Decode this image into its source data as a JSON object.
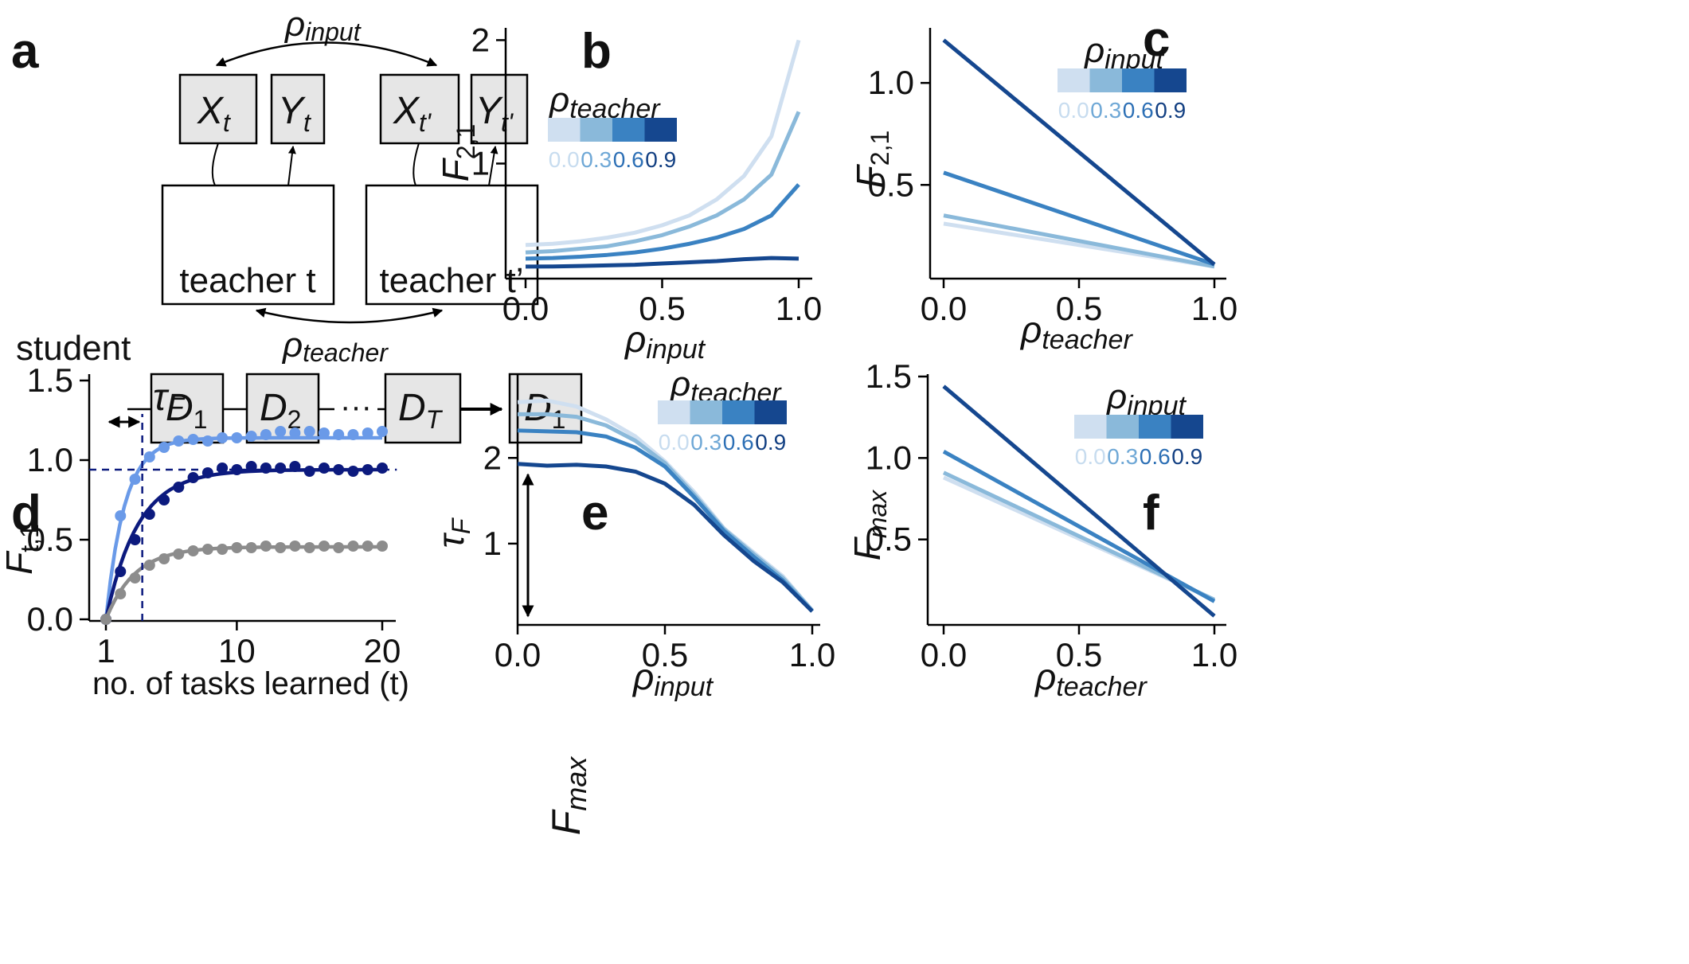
{
  "panel_letters": [
    "a",
    "b",
    "c",
    "d",
    "e",
    "f"
  ],
  "colors": {
    "shades": [
      "#cfdff0",
      "#8ab9da",
      "#3a82c2",
      "#15478f"
    ],
    "label_shades": [
      "#c7dcef",
      "#6fa8d6",
      "#2c6fb5",
      "#123f82"
    ],
    "d_light": "#6a9ae8",
    "d_dark": "#0c1a7e",
    "d_gray": "#8c8c8c",
    "box_fill": "#e6e6e6"
  },
  "schematic": {
    "rho": "ρ",
    "sub_input": "input",
    "sub_teacher": "teacher",
    "x_t": {
      "main": "X",
      "sub": "t"
    },
    "y_t": {
      "main": "Y",
      "sub": "t"
    },
    "x_tp": {
      "main": "X",
      "sub": "t'"
    },
    "y_tp": {
      "main": "Y",
      "sub": "t'"
    },
    "teacher_t_label": "teacher t",
    "teacher_tp_label": "teacher t’",
    "student_label": "student",
    "d1": {
      "main": "D",
      "sub": "1"
    },
    "d2": {
      "main": "D",
      "sub": "2"
    },
    "dots": "···",
    "dT": {
      "main": "D",
      "sub": "T"
    },
    "d1_end": {
      "main": "D",
      "sub": "1"
    }
  },
  "chart_data": [
    {
      "panel": "b",
      "type": "line",
      "xlabel": {
        "main": "ρ",
        "sub": "input"
      },
      "ylabel": {
        "main": "F",
        "sub": "2,1"
      },
      "xlim": [
        0,
        1
      ],
      "ylim": [
        0.1,
        2.08
      ],
      "xticks": [
        "0.0",
        "0.5",
        "1.0"
      ],
      "yticks": [
        "1",
        "2"
      ],
      "legend": {
        "title_main": "ρ",
        "title_sub": "teacher",
        "labels": [
          "0.0",
          "0.3",
          "0.6",
          "0.9"
        ]
      },
      "x": [
        0,
        0.1,
        0.2,
        0.3,
        0.4,
        0.5,
        0.6,
        0.7,
        0.8,
        0.9,
        1.0
      ],
      "series": [
        {
          "name": "0.0",
          "values": [
            0.34,
            0.35,
            0.37,
            0.4,
            0.44,
            0.5,
            0.58,
            0.71,
            0.9,
            1.22,
            2.0
          ]
        },
        {
          "name": "0.3",
          "values": [
            0.28,
            0.29,
            0.31,
            0.33,
            0.37,
            0.42,
            0.49,
            0.58,
            0.71,
            0.91,
            1.42
          ]
        },
        {
          "name": "0.6",
          "values": [
            0.23,
            0.235,
            0.245,
            0.26,
            0.28,
            0.31,
            0.35,
            0.4,
            0.47,
            0.58,
            0.83
          ]
        },
        {
          "name": "0.9",
          "values": [
            0.165,
            0.166,
            0.17,
            0.175,
            0.18,
            0.19,
            0.2,
            0.21,
            0.225,
            0.235,
            0.23
          ]
        }
      ]
    },
    {
      "panel": "c",
      "type": "line",
      "xlabel": {
        "main": "ρ",
        "sub": "teacher"
      },
      "ylabel": {
        "main": "F",
        "sub": "2,1"
      },
      "xlim": [
        0,
        1
      ],
      "ylim": [
        0.06,
        1.27
      ],
      "xticks": [
        "0.0",
        "0.5",
        "1.0"
      ],
      "yticks": [
        "0.5",
        "1.0"
      ],
      "legend": {
        "title_main": "ρ",
        "title_sub": "input",
        "labels": [
          "0.0",
          "0.3",
          "0.6",
          "0.9"
        ]
      },
      "x": [
        0,
        1.0
      ],
      "series": [
        {
          "name": "0.0",
          "values": [
            0.31,
            0.1
          ]
        },
        {
          "name": "0.3",
          "values": [
            0.35,
            0.1
          ]
        },
        {
          "name": "0.6",
          "values": [
            0.56,
            0.11
          ]
        },
        {
          "name": "0.9",
          "values": [
            1.21,
            0.11
          ]
        }
      ]
    },
    {
      "panel": "d",
      "type": "scatter",
      "xlabel": "no. of tasks learned (t)",
      "ylabel": {
        "main": "F",
        "sub": "t,1"
      },
      "xlim": [
        1,
        20
      ],
      "ylim": [
        0,
        1.5
      ],
      "xticks": [
        "1",
        "10",
        "20"
      ],
      "yticks": [
        "0.0",
        "0.5",
        "1.0",
        "1.5"
      ],
      "annotations": {
        "tau_main": "τ",
        "tau_sub": "F",
        "fmax_main": "F",
        "fmax_sub": "max",
        "tau_x": 3.5,
        "fmax_y": 0.94
      },
      "x": [
        1,
        2,
        3,
        4,
        5,
        6,
        7,
        8,
        9,
        10,
        11,
        12,
        13,
        14,
        15,
        16,
        17,
        18,
        19,
        20
      ],
      "series": [
        {
          "name": "light",
          "values": [
            0,
            0.65,
            0.88,
            1.02,
            1.08,
            1.12,
            1.13,
            1.12,
            1.14,
            1.14,
            1.15,
            1.16,
            1.18,
            1.17,
            1.18,
            1.17,
            1.16,
            1.16,
            1.17,
            1.18
          ]
        },
        {
          "name": "dark",
          "values": [
            0,
            0.3,
            0.5,
            0.66,
            0.75,
            0.83,
            0.89,
            0.92,
            0.95,
            0.94,
            0.96,
            0.95,
            0.95,
            0.96,
            0.93,
            0.95,
            0.94,
            0.93,
            0.94,
            0.95
          ]
        },
        {
          "name": "gray",
          "values": [
            0,
            0.16,
            0.26,
            0.34,
            0.38,
            0.41,
            0.43,
            0.44,
            0.44,
            0.45,
            0.45,
            0.46,
            0.45,
            0.46,
            0.45,
            0.46,
            0.45,
            0.46,
            0.46,
            0.46
          ]
        }
      ],
      "fits": [
        {
          "name": "light",
          "amp": 1.14,
          "tau": 1.3
        },
        {
          "name": "dark",
          "amp": 0.94,
          "tau": 2.2
        },
        {
          "name": "gray",
          "amp": 0.455,
          "tau": 2.0
        }
      ]
    },
    {
      "panel": "e",
      "type": "line",
      "xlabel": {
        "main": "ρ",
        "sub": "input"
      },
      "ylabel": {
        "main": "τ",
        "sub": "F"
      },
      "xlim": [
        0,
        1
      ],
      "ylim": [
        0.07,
        2.95
      ],
      "xticks": [
        "0.0",
        "0.5",
        "1.0"
      ],
      "yticks": [
        "1",
        "2"
      ],
      "legend": {
        "title_main": "ρ",
        "title_sub": "teacher",
        "labels": [
          "0.0",
          "0.3",
          "0.6",
          "0.9"
        ]
      },
      "x": [
        0,
        0.1,
        0.2,
        0.3,
        0.4,
        0.5,
        0.6,
        0.7,
        0.8,
        0.9,
        1.0
      ],
      "series": [
        {
          "name": "0.0",
          "values": [
            2.65,
            2.67,
            2.6,
            2.45,
            2.25,
            1.96,
            1.6,
            1.18,
            0.9,
            0.62,
            0.22
          ]
        },
        {
          "name": "0.3",
          "values": [
            2.51,
            2.51,
            2.48,
            2.38,
            2.2,
            1.94,
            1.57,
            1.17,
            0.88,
            0.6,
            0.22
          ]
        },
        {
          "name": "0.6",
          "values": [
            2.32,
            2.31,
            2.3,
            2.25,
            2.12,
            1.9,
            1.54,
            1.15,
            0.85,
            0.57,
            0.21
          ]
        },
        {
          "name": "0.9",
          "values": [
            1.93,
            1.91,
            1.92,
            1.9,
            1.84,
            1.7,
            1.45,
            1.1,
            0.8,
            0.55,
            0.21
          ]
        }
      ]
    },
    {
      "panel": "f",
      "type": "line",
      "xlabel": {
        "main": "ρ",
        "sub": "teacher"
      },
      "ylabel": {
        "main": "F",
        "sub": "max"
      },
      "xlim": [
        0,
        1
      ],
      "ylim": [
        0,
        1.5
      ],
      "xticks": [
        "0.0",
        "0.5",
        "1.0"
      ],
      "yticks": [
        "0.5",
        "1.0",
        "1.5"
      ],
      "legend": {
        "title_main": "ρ",
        "title_sub": "input",
        "labels": [
          "0.0",
          "0.3",
          "0.6",
          "0.9"
        ]
      },
      "x": [
        0,
        1.0
      ],
      "series": [
        {
          "name": "0.0",
          "values": [
            0.88,
            0.13
          ]
        },
        {
          "name": "0.3",
          "values": [
            0.91,
            0.13
          ]
        },
        {
          "name": "0.6",
          "values": [
            1.04,
            0.12
          ]
        },
        {
          "name": "0.9",
          "values": [
            1.44,
            0.03
          ]
        }
      ]
    }
  ]
}
